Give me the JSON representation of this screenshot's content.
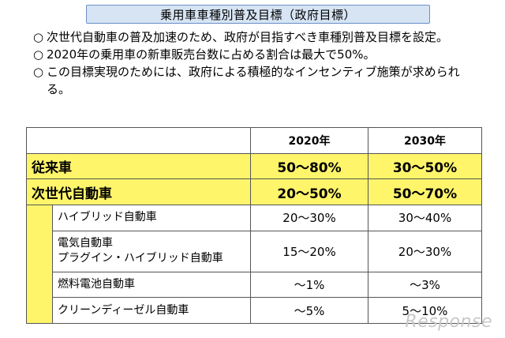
{
  "title": "乗用車車種別普及目標（政府目標）",
  "bullets": [
    {
      "mark": "○",
      "text": "次世代自動車の普及加速のため、政府が目指すべき車種別普及目標を設定。"
    },
    {
      "mark": "○",
      "text": "2020年の乗用車の新車販売台数に占める割合は最大で50%。"
    },
    {
      "mark": "○",
      "text": "この目標実現のためには、政府による積極的なインセンティブ施策が求められる。"
    }
  ],
  "table": {
    "headers": [
      "2020年",
      "2030年"
    ],
    "rows": [
      {
        "label": "従来車",
        "y2020": "50〜80%",
        "y2030": "30〜50%"
      },
      {
        "label": "次世代自動車",
        "y2020": "20〜50%",
        "y2030": "50〜70%"
      }
    ],
    "sub_rows": [
      {
        "label": "ハイブリッド自動車",
        "y2020": "20〜30%",
        "y2030": "30〜40%"
      },
      {
        "label_line1": "電気自動車",
        "label_line2": "プラグイン・ハイブリッド自動車",
        "y2020": "15〜20%",
        "y2030": "20〜30%"
      },
      {
        "label": "燃料電池自動車",
        "y2020": "〜1%",
        "y2030": "〜3%"
      },
      {
        "label": "クリーンディーゼル自動車",
        "y2020": "〜5%",
        "y2030": "5〜10%"
      }
    ]
  },
  "watermark": "Response",
  "colors": {
    "highlight": "#fff56b",
    "title_bg": "#d6e4f4",
    "title_border": "#6a8fc6"
  }
}
